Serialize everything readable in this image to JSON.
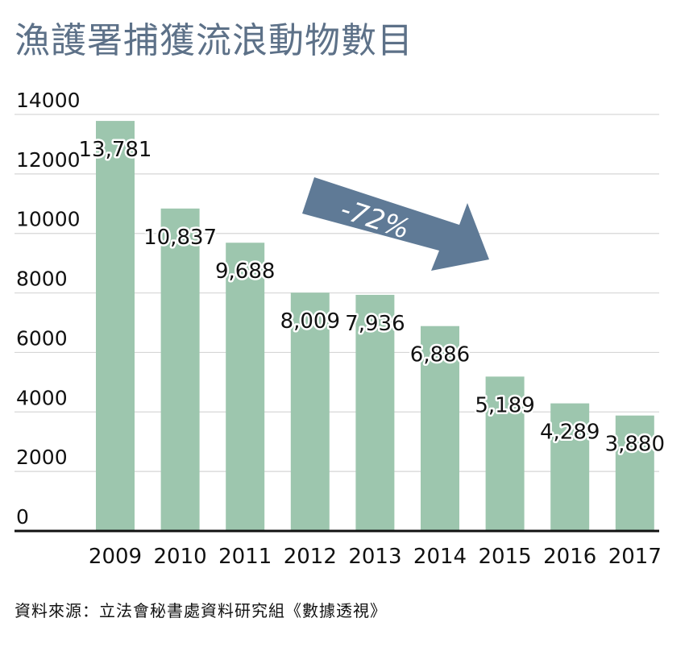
{
  "page": {
    "title": "漁護署捕獲流浪動物數目",
    "source": "資料來源：立法會秘書處資料研究組《數據透視》"
  },
  "colors": {
    "bar": "#9dc6ae",
    "title": "#5d7188",
    "arrow": "#5f7a96"
  },
  "chart_data": {
    "type": "bar",
    "title": "漁護署捕獲流浪動物數目",
    "xlabel": "",
    "ylabel": "",
    "categories": [
      "2009",
      "2010",
      "2011",
      "2012",
      "2013",
      "2014",
      "2015",
      "2016",
      "2017"
    ],
    "values": [
      13781,
      10837,
      9688,
      8009,
      7936,
      6886,
      5189,
      4289,
      3880
    ],
    "data_labels": [
      "13,781",
      "10,837",
      "9,688",
      "8,009",
      "7,936",
      "6,886",
      "5,189",
      "4,289",
      "3,880"
    ],
    "yticks": [
      0,
      2000,
      4000,
      6000,
      8000,
      10000,
      12000,
      14000
    ],
    "ytick_labels": [
      "0",
      "2000",
      "4000",
      "6000",
      "8000",
      "10000",
      "12000",
      "14000"
    ],
    "ylim": [
      0,
      14000
    ],
    "grid": true,
    "legend": "none",
    "annotations": [
      {
        "text": "-72%",
        "shape": "arrow",
        "direction": "down-right"
      }
    ]
  }
}
